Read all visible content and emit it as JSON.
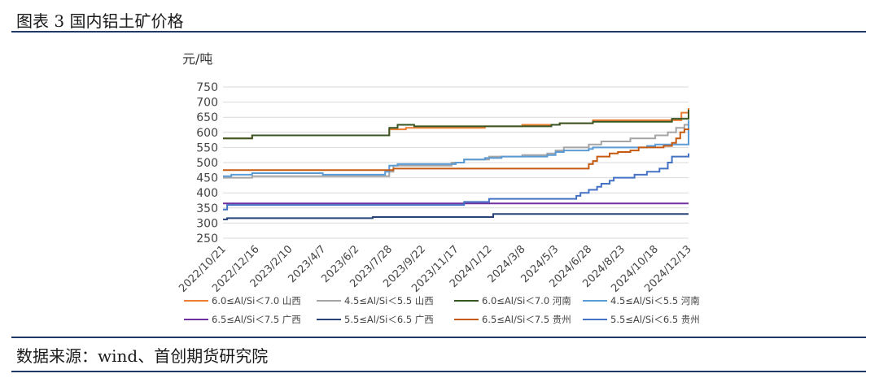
{
  "header": {
    "title": "图表 3 国内铝土矿价格"
  },
  "footer": {
    "source": "数据来源：wind、首创期货研究院"
  },
  "chart_data": {
    "type": "line",
    "title": "",
    "ylabel": "元/吨",
    "ylim": [
      250,
      750
    ],
    "yticks": [
      250,
      300,
      350,
      400,
      450,
      500,
      550,
      600,
      650,
      700,
      750
    ],
    "xlim": [
      "2022-10-21",
      "2024-12-13"
    ],
    "xticks": [
      "2022/10/21",
      "2022/12/16",
      "2023/2/10",
      "2023/4/7",
      "2023/6/2",
      "2023/7/28",
      "2023/9/22",
      "2023/11/17",
      "2024/1/12",
      "2024/3/8",
      "2024/5/3",
      "2024/6/28",
      "2024/8/23",
      "2024/10/18",
      "2024/12/13"
    ],
    "grid": "horizontal",
    "legend_position": "bottom",
    "series": [
      {
        "name": "6.0≤Al/Si＜7.0 山西",
        "color": "#ED7D31",
        "points": [
          [
            "2022-10-21",
            580
          ],
          [
            "2022-12-02",
            580
          ],
          [
            "2022-12-09",
            590
          ],
          [
            "2023-07-21",
            590
          ],
          [
            "2023-07-28",
            610
          ],
          [
            "2023-08-25",
            615
          ],
          [
            "2024-01-05",
            620
          ],
          [
            "2024-03-08",
            625
          ],
          [
            "2024-05-10",
            630
          ],
          [
            "2024-07-05",
            640
          ],
          [
            "2024-11-29",
            640
          ],
          [
            "2024-12-01",
            665
          ],
          [
            "2024-12-10",
            665
          ],
          [
            "2024-12-13",
            680
          ]
        ]
      },
      {
        "name": "4.5≤Al/Si＜5.5 山西",
        "color": "#A5A5A5",
        "points": [
          [
            "2022-10-21",
            450
          ],
          [
            "2022-11-18",
            450
          ],
          [
            "2022-12-09",
            455
          ],
          [
            "2023-07-14",
            455
          ],
          [
            "2023-07-28",
            470
          ],
          [
            "2023-08-04",
            490
          ],
          [
            "2023-11-10",
            500
          ],
          [
            "2023-12-01",
            510
          ],
          [
            "2024-01-12",
            520
          ],
          [
            "2024-03-08",
            525
          ],
          [
            "2024-04-19",
            530
          ],
          [
            "2024-05-03",
            540
          ],
          [
            "2024-05-17",
            550
          ],
          [
            "2024-06-28",
            560
          ],
          [
            "2024-07-19",
            570
          ],
          [
            "2024-09-06",
            580
          ],
          [
            "2024-10-18",
            590
          ],
          [
            "2024-11-08",
            600
          ],
          [
            "2024-11-22",
            615
          ],
          [
            "2024-12-06",
            625
          ],
          [
            "2024-12-13",
            640
          ]
        ]
      },
      {
        "name": "6.0≤Al/Si＜7.0 河南",
        "color": "#375623",
        "points": [
          [
            "2022-10-21",
            580
          ],
          [
            "2022-12-09",
            590
          ],
          [
            "2023-07-21",
            590
          ],
          [
            "2023-07-28",
            615
          ],
          [
            "2023-08-11",
            625
          ],
          [
            "2023-09-08",
            620
          ],
          [
            "2024-03-08",
            620
          ],
          [
            "2024-04-26",
            625
          ],
          [
            "2024-05-10",
            630
          ],
          [
            "2024-07-05",
            635
          ],
          [
            "2024-11-01",
            635
          ],
          [
            "2024-11-15",
            645
          ],
          [
            "2024-12-06",
            645
          ],
          [
            "2024-12-13",
            675
          ]
        ]
      },
      {
        "name": "4.5≤Al/Si＜5.5 河南",
        "color": "#5B9BD5",
        "points": [
          [
            "2022-10-21",
            455
          ],
          [
            "2022-11-04",
            460
          ],
          [
            "2022-12-09",
            465
          ],
          [
            "2023-03-24",
            465
          ],
          [
            "2023-04-07",
            460
          ],
          [
            "2023-07-07",
            460
          ],
          [
            "2023-07-21",
            470
          ],
          [
            "2023-07-28",
            490
          ],
          [
            "2023-08-11",
            495
          ],
          [
            "2023-11-17",
            500
          ],
          [
            "2023-12-01",
            510
          ],
          [
            "2024-01-05",
            515
          ],
          [
            "2024-02-02",
            520
          ],
          [
            "2024-04-19",
            525
          ],
          [
            "2024-05-03",
            535
          ],
          [
            "2024-05-17",
            540
          ],
          [
            "2024-06-28",
            545
          ],
          [
            "2024-07-05",
            550
          ],
          [
            "2024-10-04",
            555
          ],
          [
            "2024-10-18",
            560
          ],
          [
            "2024-12-06",
            560
          ],
          [
            "2024-12-13",
            640
          ]
        ]
      },
      {
        "name": "6.5≤Al/Si＜7.5 广西",
        "color": "#7030A0",
        "points": [
          [
            "2022-10-21",
            365
          ],
          [
            "2024-12-13",
            365
          ]
        ]
      },
      {
        "name": "5.5≤Al/Si＜6.5 广西",
        "color": "#264478",
        "points": [
          [
            "2022-10-21",
            312
          ],
          [
            "2022-10-28",
            316
          ],
          [
            "2023-06-23",
            316
          ],
          [
            "2023-06-30",
            320
          ],
          [
            "2024-01-12",
            320
          ],
          [
            "2024-01-19",
            330
          ],
          [
            "2024-12-13",
            330
          ]
        ]
      },
      {
        "name": "6.5≤Al/Si＜7.5 贵州",
        "color": "#C55A11",
        "points": [
          [
            "2022-10-21",
            475
          ],
          [
            "2023-07-28",
            475
          ],
          [
            "2023-08-04",
            480
          ],
          [
            "2024-06-21",
            480
          ],
          [
            "2024-06-28",
            495
          ],
          [
            "2024-07-05",
            505
          ],
          [
            "2024-07-12",
            520
          ],
          [
            "2024-08-02",
            530
          ],
          [
            "2024-08-16",
            535
          ],
          [
            "2024-09-06",
            540
          ],
          [
            "2024-09-20",
            550
          ],
          [
            "2024-11-01",
            555
          ],
          [
            "2024-11-15",
            565
          ],
          [
            "2024-11-22",
            580
          ],
          [
            "2024-11-29",
            600
          ],
          [
            "2024-12-06",
            610
          ],
          [
            "2024-12-13",
            612
          ]
        ]
      },
      {
        "name": "5.5≤Al/Si＜6.5 贵州",
        "color": "#4472C4",
        "points": [
          [
            "2022-10-21",
            345
          ],
          [
            "2022-10-28",
            360
          ],
          [
            "2023-11-24",
            360
          ],
          [
            "2023-12-01",
            370
          ],
          [
            "2024-01-12",
            380
          ],
          [
            "2024-05-31",
            380
          ],
          [
            "2024-06-07",
            390
          ],
          [
            "2024-06-14",
            400
          ],
          [
            "2024-06-28",
            410
          ],
          [
            "2024-07-12",
            420
          ],
          [
            "2024-07-19",
            430
          ],
          [
            "2024-08-02",
            440
          ],
          [
            "2024-08-09",
            450
          ],
          [
            "2024-09-13",
            460
          ],
          [
            "2024-10-04",
            470
          ],
          [
            "2024-10-25",
            480
          ],
          [
            "2024-11-08",
            500
          ],
          [
            "2024-11-15",
            520
          ],
          [
            "2024-12-13",
            530
          ]
        ]
      }
    ]
  }
}
